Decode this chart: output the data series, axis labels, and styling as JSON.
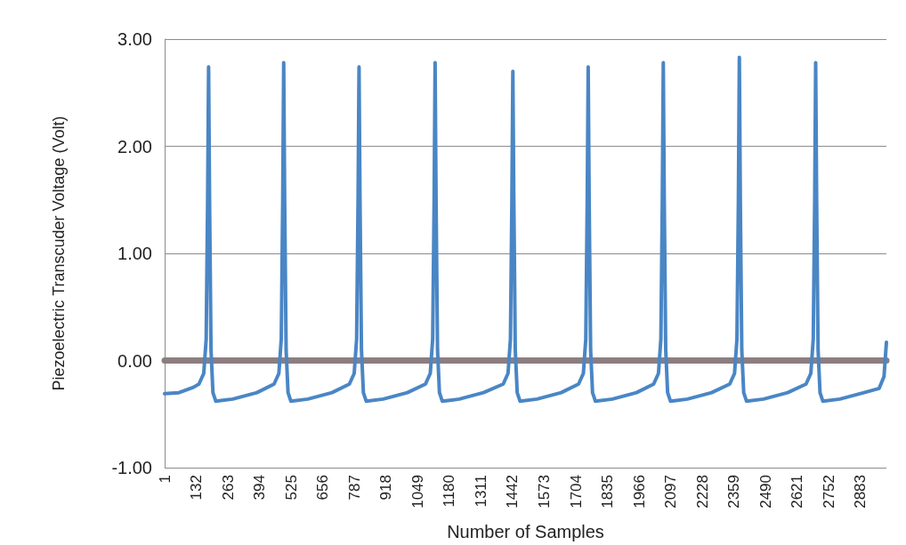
{
  "chart_data": {
    "type": "line",
    "xlabel": "Number of Samples",
    "ylabel": "Piezoelectric Transcuder Voltage (Volt)",
    "xlim": [
      1,
      2990
    ],
    "xticks": [
      1,
      132,
      263,
      394,
      525,
      656,
      787,
      918,
      1049,
      1180,
      1311,
      1442,
      1573,
      1704,
      1835,
      1966,
      2097,
      2228,
      2359,
      2490,
      2621,
      2752,
      2883
    ],
    "ylim": [
      -1,
      3
    ],
    "yticks": [
      {
        "value": -1,
        "label": "-1.00"
      },
      {
        "value": 0,
        "label": "0.00"
      },
      {
        "value": 1,
        "label": "1.00"
      },
      {
        "value": 2,
        "label": "2.00"
      },
      {
        "value": 3,
        "label": "3.00"
      }
    ],
    "grid": "y",
    "marker": "none",
    "line_style": "solid",
    "series": [
      {
        "color": "#4a86c5",
        "x": [
          1,
          60,
          120,
          143,
          163,
          173,
          179,
          183,
          187,
          193,
          201,
          213,
          283,
          383,
          454,
          474,
          484,
          490,
          494,
          498,
          504,
          512,
          524,
          594,
          694,
          766,
          786,
          796,
          802,
          806,
          810,
          816,
          824,
          836,
          906,
          1006,
          1081,
          1101,
          1111,
          1117,
          1121,
          1125,
          1131,
          1139,
          1151,
          1221,
          1321,
          1403,
          1423,
          1433,
          1439,
          1443,
          1447,
          1453,
          1461,
          1473,
          1543,
          1643,
          1715,
          1735,
          1745,
          1751,
          1755,
          1759,
          1765,
          1773,
          1785,
          1855,
          1955,
          2026,
          2046,
          2056,
          2062,
          2066,
          2070,
          2076,
          2084,
          2096,
          2166,
          2266,
          2341,
          2361,
          2371,
          2377,
          2381,
          2385,
          2391,
          2399,
          2411,
          2481,
          2581,
          2657,
          2677,
          2687,
          2693,
          2697,
          2701,
          2707,
          2715,
          2727,
          2797,
          2897,
          2960,
          2980,
          2990
        ],
        "values": [
          -0.31,
          -0.3,
          -0.25,
          -0.22,
          -0.12,
          0.2,
          1.5,
          2.74,
          1.5,
          0.1,
          -0.3,
          -0.38,
          -0.36,
          -0.3,
          -0.22,
          -0.12,
          0.2,
          1.5,
          2.78,
          1.5,
          0.1,
          -0.3,
          -0.38,
          -0.36,
          -0.3,
          -0.22,
          -0.12,
          0.2,
          1.5,
          2.74,
          1.5,
          0.1,
          -0.3,
          -0.38,
          -0.36,
          -0.3,
          -0.22,
          -0.12,
          0.2,
          1.5,
          2.78,
          1.5,
          0.1,
          -0.3,
          -0.38,
          -0.36,
          -0.3,
          -0.22,
          -0.12,
          0.2,
          1.5,
          2.7,
          1.5,
          0.1,
          -0.3,
          -0.38,
          -0.36,
          -0.3,
          -0.22,
          -0.12,
          0.2,
          1.5,
          2.74,
          1.5,
          0.1,
          -0.3,
          -0.38,
          -0.36,
          -0.3,
          -0.22,
          -0.12,
          0.2,
          1.5,
          2.78,
          1.5,
          0.1,
          -0.3,
          -0.38,
          -0.36,
          -0.3,
          -0.22,
          -0.12,
          0.2,
          1.5,
          2.83,
          1.5,
          0.1,
          -0.3,
          -0.38,
          -0.36,
          -0.3,
          -0.22,
          -0.12,
          0.2,
          1.5,
          2.78,
          1.5,
          0.1,
          -0.3,
          -0.38,
          -0.36,
          -0.3,
          -0.26,
          -0.15,
          0.17
        ]
      }
    ]
  }
}
